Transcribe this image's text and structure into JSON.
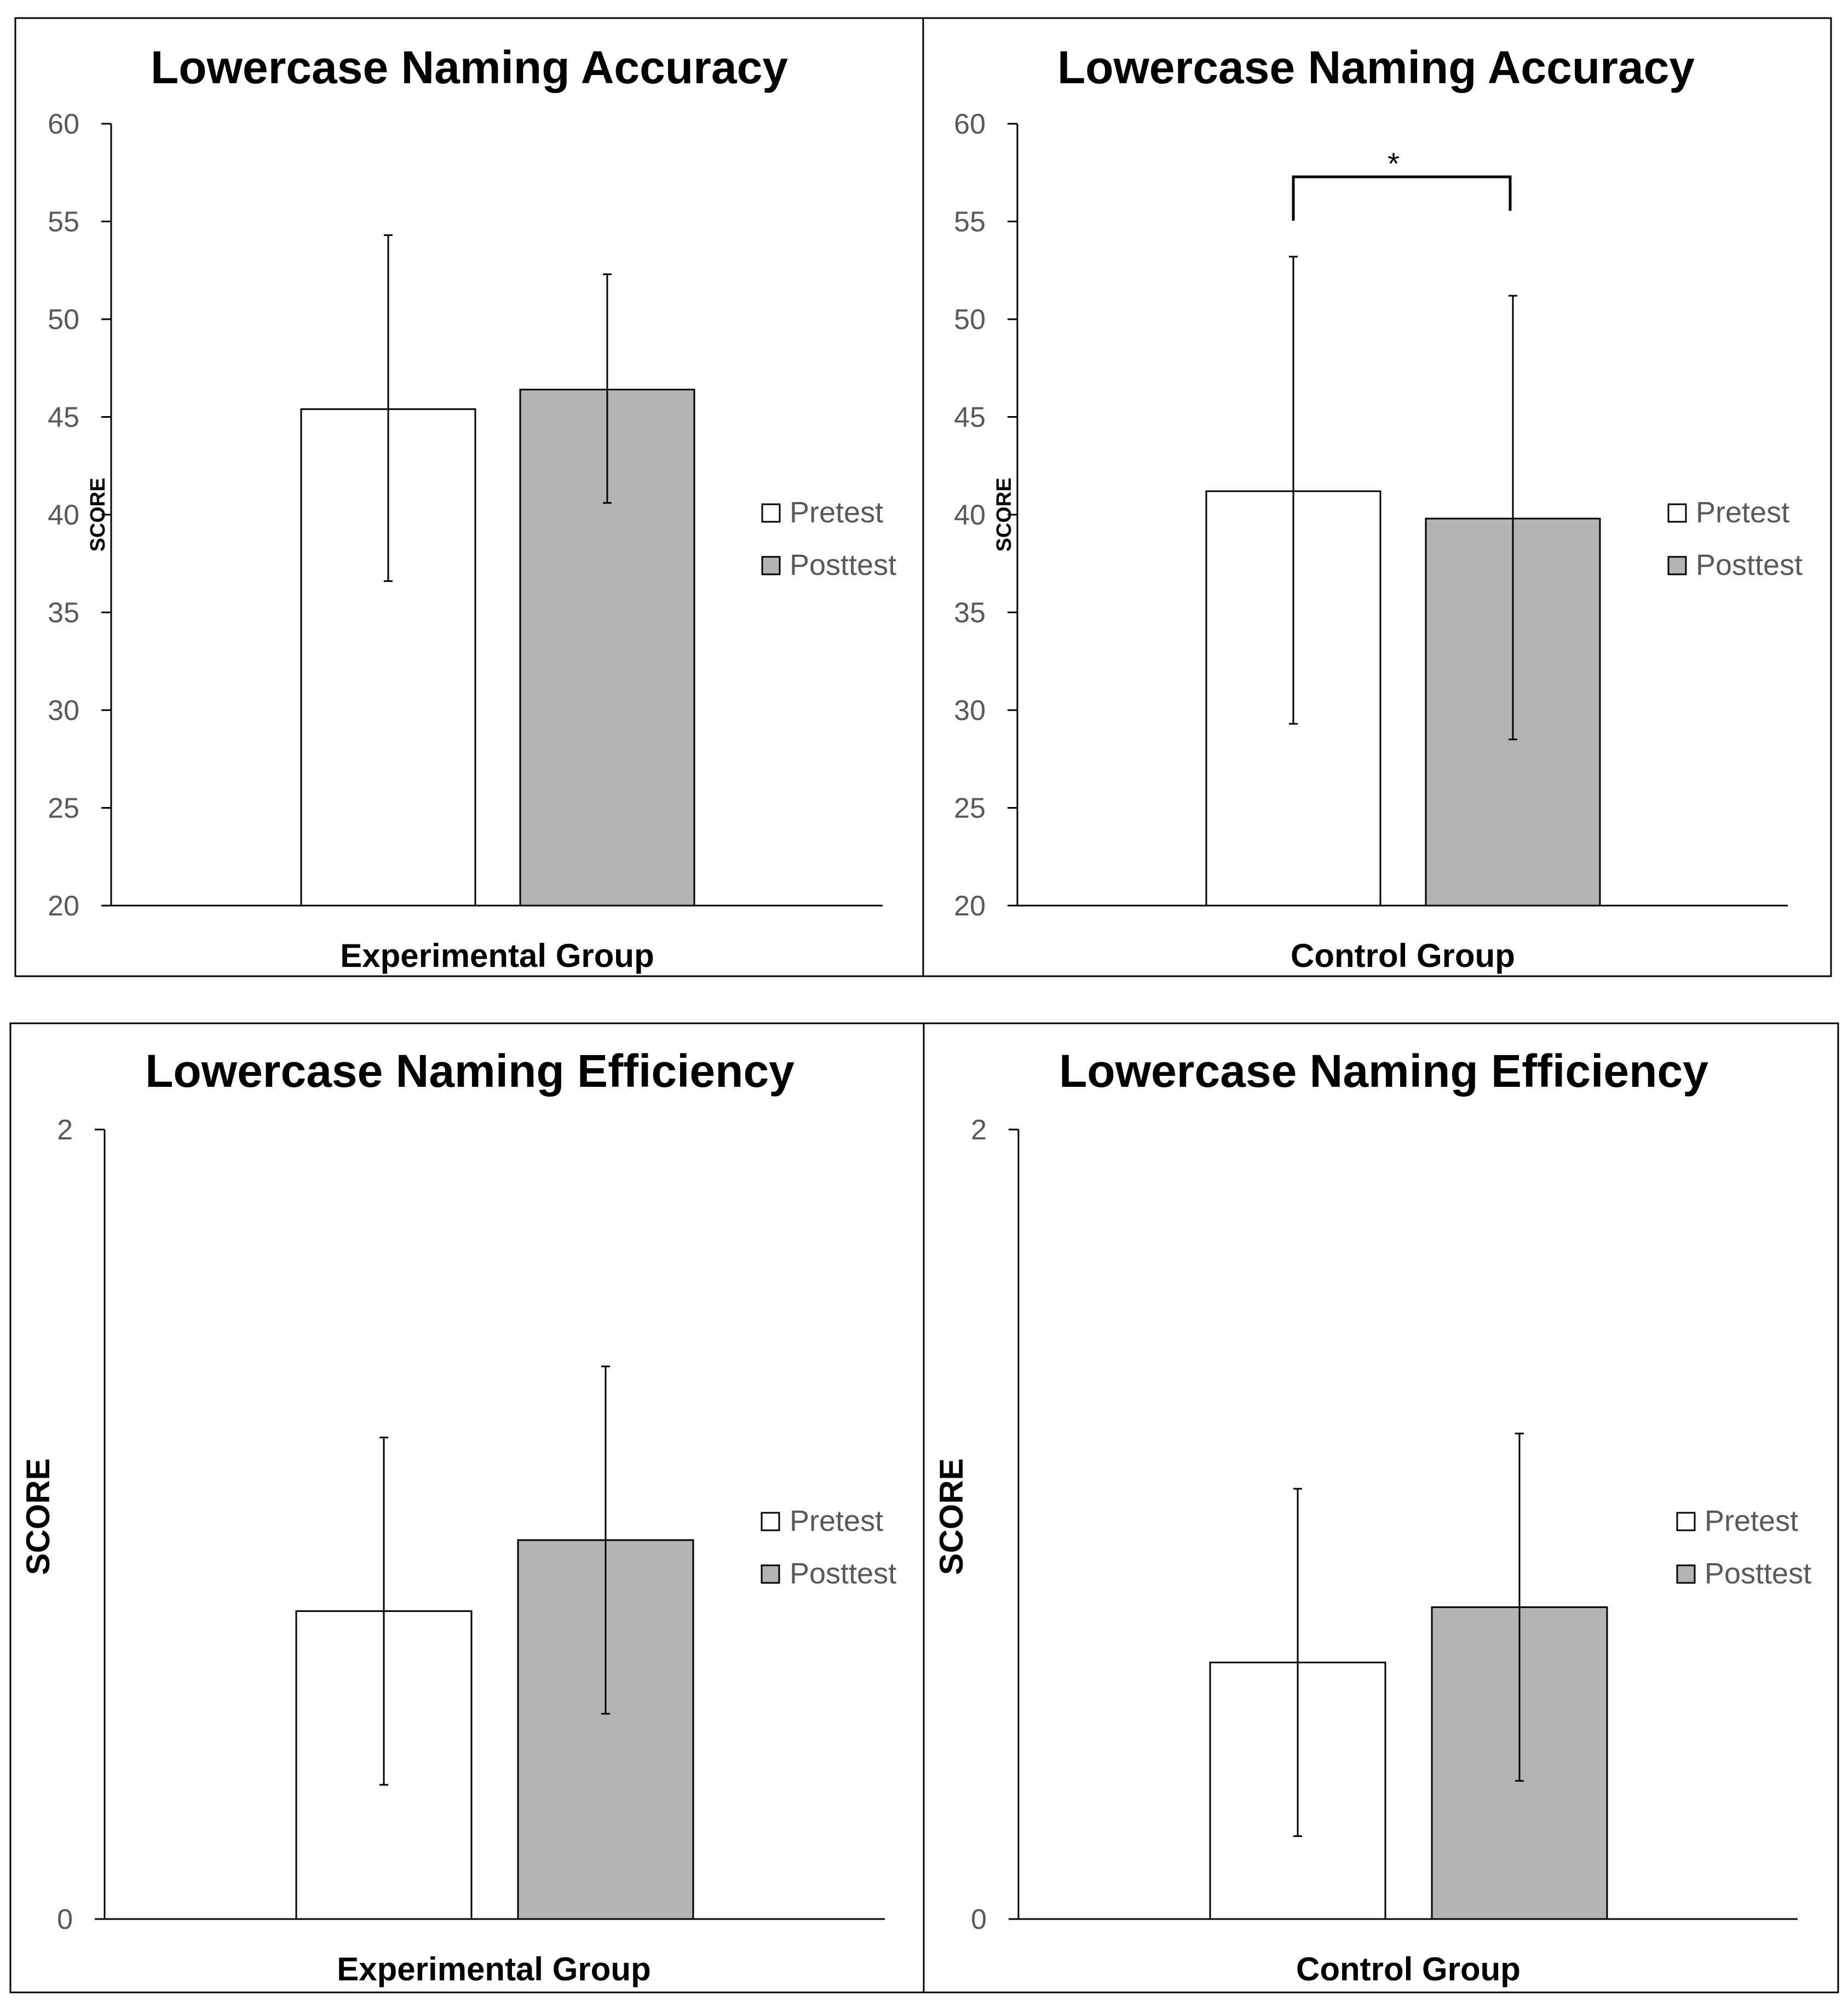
{
  "chart_data": [
    {
      "type": "bar",
      "title": "Lowercase Naming Accuracy",
      "xlabel": "Experimental Group",
      "ylabel": "SCORE",
      "ylim": [
        20,
        60
      ],
      "yticks": [
        "20",
        "25",
        "30",
        "35",
        "40",
        "45",
        "50",
        "55",
        "60"
      ],
      "categories": [
        "Experimental Group"
      ],
      "series": [
        {
          "name": "Pretest",
          "color": "#ffffff",
          "values": [
            45.4
          ],
          "error_low": [
            36.6
          ],
          "error_high": [
            54.3
          ]
        },
        {
          "name": "Posttest",
          "color": "#b3b3b3",
          "values": [
            46.4
          ],
          "error_low": [
            40.6
          ],
          "error_high": [
            52.3
          ]
        }
      ],
      "annotation": ""
    },
    {
      "type": "bar",
      "title": "Lowercase Naming Accuracy",
      "xlabel": "Control Group",
      "ylabel": "SCORE",
      "ylim": [
        20,
        60
      ],
      "yticks": [
        "20",
        "25",
        "30",
        "35",
        "40",
        "45",
        "50",
        "55",
        "60"
      ],
      "categories": [
        "Control Group"
      ],
      "series": [
        {
          "name": "Pretest",
          "color": "#ffffff",
          "values": [
            41.2
          ],
          "error_low": [
            29.3
          ],
          "error_high": [
            53.2
          ]
        },
        {
          "name": "Posttest",
          "color": "#b3b3b3",
          "values": [
            39.8
          ],
          "error_low": [
            28.5
          ],
          "error_high": [
            51.2
          ]
        }
      ],
      "annotation": "*"
    },
    {
      "type": "bar",
      "title": "Lowercase Naming Efficiency",
      "xlabel": "Experimental Group",
      "ylabel": "SCORE",
      "ylim": [
        0,
        2
      ],
      "yticks": [
        "0",
        "2"
      ],
      "categories": [
        "Experimental Group"
      ],
      "series": [
        {
          "name": "Pretest",
          "color": "#ffffff",
          "values": [
            0.78
          ],
          "error_low": [
            0.34
          ],
          "error_high": [
            1.22
          ]
        },
        {
          "name": "Posttest",
          "color": "#b3b3b3",
          "values": [
            0.96
          ],
          "error_low": [
            0.52
          ],
          "error_high": [
            1.4
          ]
        }
      ],
      "annotation": ""
    },
    {
      "type": "bar",
      "title": "Lowercase Naming Efficiency",
      "xlabel": "Control Group",
      "ylabel": "SCORE",
      "ylim": [
        0,
        2
      ],
      "yticks": [
        "0",
        "2"
      ],
      "categories": [
        "Control Group"
      ],
      "series": [
        {
          "name": "Pretest",
          "color": "#ffffff",
          "values": [
            0.65
          ],
          "error_low": [
            0.21
          ],
          "error_high": [
            1.09
          ]
        },
        {
          "name": "Posttest",
          "color": "#b3b3b3",
          "values": [
            0.79
          ],
          "error_low": [
            0.35
          ],
          "error_high": [
            1.23
          ]
        }
      ],
      "annotation": ""
    }
  ]
}
